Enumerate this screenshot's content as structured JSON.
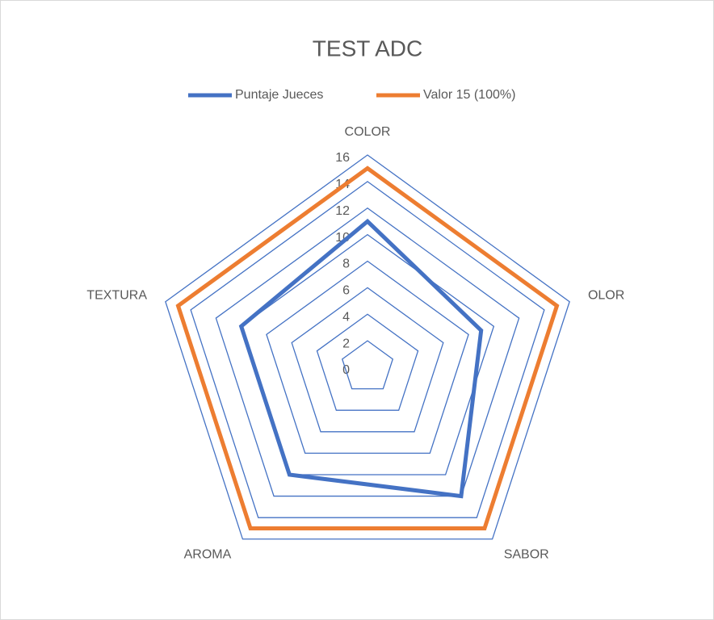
{
  "chart_data": {
    "type": "radar",
    "title": "TEST ADC",
    "categories": [
      "COLOR",
      "OLOR",
      "SABOR",
      "AROMA",
      "TEXTURA"
    ],
    "series": [
      {
        "name": "Puntaje Jueces",
        "color": "#4472c4",
        "values": [
          11,
          9,
          12,
          10,
          10
        ]
      },
      {
        "name": "Valor 15 (100%)",
        "color": "#ed7d31",
        "values": [
          15,
          15,
          15,
          15,
          15
        ]
      }
    ],
    "ylim": [
      0,
      16
    ],
    "yticks": [
      0,
      2,
      4,
      6,
      8,
      10,
      12,
      14,
      16
    ],
    "grid": true,
    "grid_color": "#4472c4",
    "legend": "top"
  }
}
